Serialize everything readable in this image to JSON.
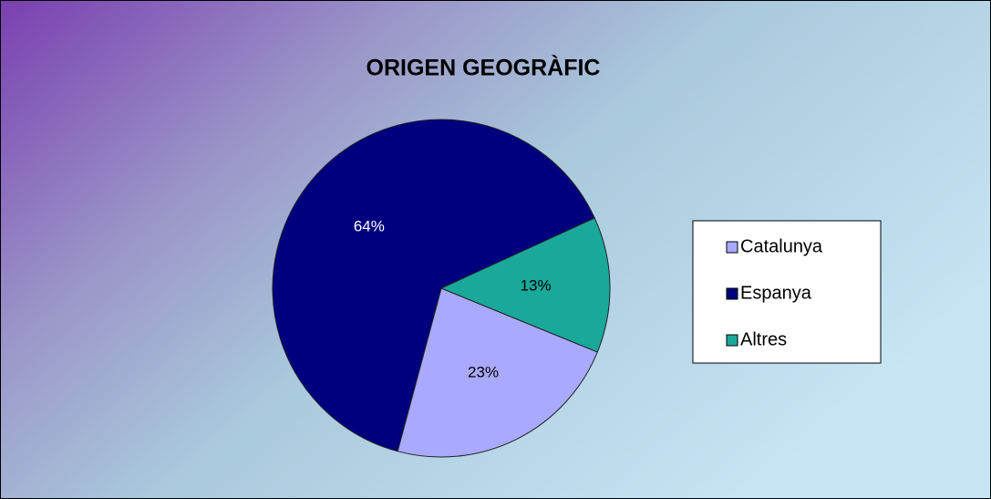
{
  "chart_data": {
    "type": "pie",
    "title": "ORIGEN GEOGRÀFIC",
    "categories": [
      "Catalunya",
      "Espanya",
      "Altres"
    ],
    "values": [
      23,
      64,
      13
    ],
    "value_labels": [
      "23%",
      "64%",
      "13%"
    ],
    "colors": [
      "#a9a9ff",
      "#00007f",
      "#1aa89a"
    ],
    "legend": "right"
  }
}
